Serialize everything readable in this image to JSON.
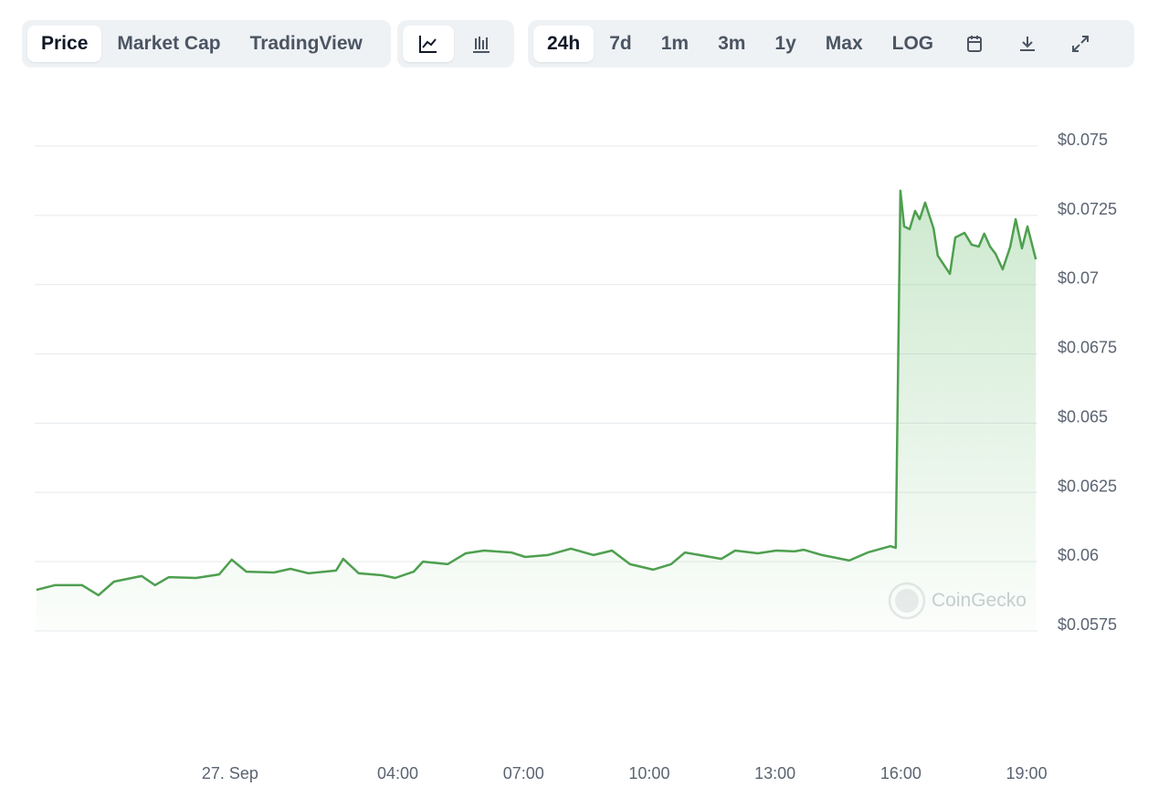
{
  "toolbar": {
    "views": [
      "Price",
      "Market Cap",
      "TradingView"
    ],
    "ranges": [
      "24h",
      "7d",
      "1m",
      "3m",
      "1y",
      "Max",
      "LOG"
    ]
  },
  "chart_data": {
    "type": "line",
    "color": "#4e9f4f",
    "grid": true,
    "watermark": "CoinGecko",
    "x": [
      -4.62,
      -4.18,
      -3.53,
      -3.14,
      -2.77,
      -2.11,
      -1.79,
      -1.46,
      -0.81,
      -0.26,
      0.04,
      0.39,
      1.05,
      1.44,
      1.87,
      2.53,
      2.7,
      3.07,
      3.62,
      3.94,
      4.38,
      4.6,
      5.19,
      5.62,
      6.06,
      6.71,
      7.04,
      7.58,
      8.13,
      8.67,
      9.11,
      9.54,
      10.09,
      10.52,
      10.85,
      11.72,
      12.05,
      12.59,
      13.03,
      13.46,
      13.68,
      14.12,
      14.77,
      15.21,
      15.75,
      15.88,
      15.99,
      16.08,
      16.21,
      16.34,
      16.45,
      16.58,
      16.78,
      16.88,
      17.17,
      17.3,
      17.52,
      17.69,
      17.86,
      17.99,
      18.13,
      18.26,
      18.43,
      18.61,
      18.74,
      18.89,
      19.02,
      19.22
    ],
    "values": [
      0.05898,
      0.05915,
      0.05915,
      0.05879,
      0.05928,
      0.05948,
      0.05915,
      0.05944,
      0.05941,
      0.05954,
      0.06007,
      0.05964,
      0.05961,
      0.05974,
      0.05958,
      0.05968,
      0.0601,
      0.05958,
      0.05951,
      0.05941,
      0.05964,
      0.06,
      0.05991,
      0.0603,
      0.0604,
      0.06033,
      0.06017,
      0.06024,
      0.06047,
      0.06024,
      0.0604,
      0.05991,
      0.05971,
      0.05991,
      0.06033,
      0.0601,
      0.0604,
      0.0603,
      0.0604,
      0.06037,
      0.06043,
      0.06024,
      0.06004,
      0.06033,
      0.06056,
      0.0605,
      0.07339,
      0.0721,
      0.072,
      0.07266,
      0.07236,
      0.07296,
      0.07203,
      0.07105,
      0.07039,
      0.0717,
      0.07187,
      0.07144,
      0.07137,
      0.07184,
      0.07137,
      0.07111,
      0.07055,
      0.07137,
      0.07236,
      0.07131,
      0.0721,
      0.07091
    ],
    "xlim": [
      -4.66,
      19.26
    ],
    "xticks": [
      {
        "value": 0,
        "label": "27. Sep"
      },
      {
        "value": 4,
        "label": "04:00"
      },
      {
        "value": 7,
        "label": "07:00"
      },
      {
        "value": 10,
        "label": "10:00"
      },
      {
        "value": 13,
        "label": "13:00"
      },
      {
        "value": 16,
        "label": "16:00"
      },
      {
        "value": 19,
        "label": "19:00"
      }
    ],
    "ylim": [
      0.0575,
      0.075
    ],
    "yticks": [
      {
        "value": 0.0575,
        "label": "$0.0575"
      },
      {
        "value": 0.06,
        "label": "$0.06"
      },
      {
        "value": 0.0625,
        "label": "$0.0625"
      },
      {
        "value": 0.065,
        "label": "$0.065"
      },
      {
        "value": 0.0675,
        "label": "$0.0675"
      },
      {
        "value": 0.07,
        "label": "$0.07"
      },
      {
        "value": 0.0725,
        "label": "$0.0725"
      },
      {
        "value": 0.075,
        "label": "$0.075"
      }
    ]
  }
}
